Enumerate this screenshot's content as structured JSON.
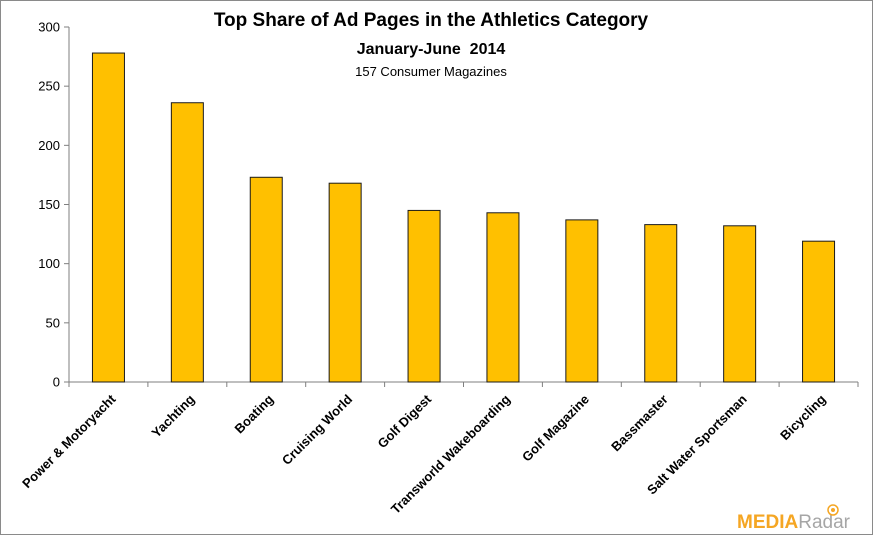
{
  "chart_data": {
    "type": "bar",
    "title": "Top Share of Ad Pages in the Athletics Category",
    "subtitle": "January-June  2014",
    "note": "157 Consumer Magazines",
    "categories": [
      "Power & Motoryacht",
      "Yachting",
      "Boating",
      "Cruising World",
      "Golf Digest",
      "Transworld Wakeboarding",
      "Golf Magazine",
      "Bassmaster",
      "Salt Water Sportsman",
      "Bicycling"
    ],
    "values": [
      278,
      236,
      173,
      168,
      145,
      143,
      137,
      133,
      132,
      119
    ],
    "ylim": [
      0,
      300
    ],
    "yticks": [
      "0",
      "50",
      "100",
      "150",
      "200",
      "250",
      "300"
    ],
    "xlabel": "",
    "ylabel": "",
    "grid": false,
    "bar_color": "#FFC000",
    "bar_edge_color": "#1a1a1a"
  },
  "branding": {
    "logo_left": "MEDIA",
    "logo_right": "Radar",
    "logo_icon": "radar-icon"
  }
}
